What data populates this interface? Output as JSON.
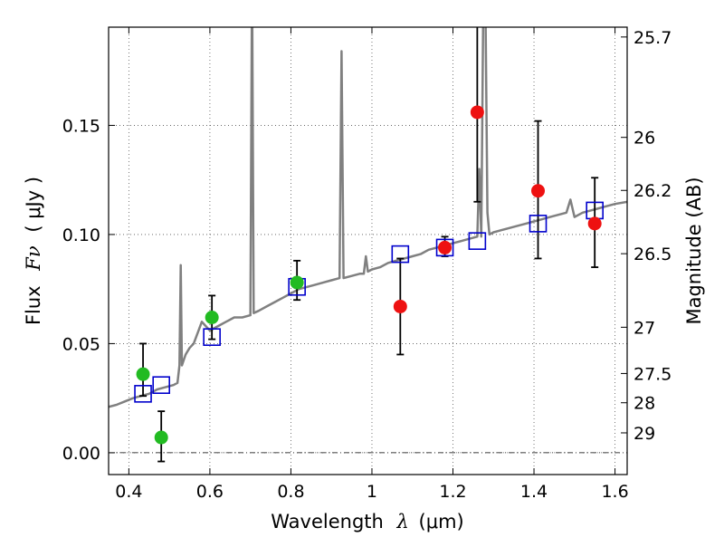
{
  "chart_data": {
    "type": "scatter",
    "xlabel_text": "Wavelength",
    "xlabel_symbol": "λ",
    "xlabel_unit": "(μm)",
    "ylabel_text": "Flux",
    "ylabel_symbol": "Fν",
    "ylabel_unit": "( μJy )",
    "y2label": "Magnitude (AB)",
    "xlim": [
      0.35,
      1.63
    ],
    "ylim": [
      -0.01,
      0.195
    ],
    "x_ticks": [
      0.4,
      0.6,
      0.8,
      1.0,
      1.2,
      1.4,
      1.6
    ],
    "x_tick_labels": [
      "0.4",
      "0.6",
      "0.8",
      "1",
      "1.2",
      "1.4",
      "1.6"
    ],
    "y_ticks": [
      0.0,
      0.05,
      0.1,
      0.15
    ],
    "y_tick_labels": [
      "0.00",
      "0.05",
      "0.10",
      "0.15"
    ],
    "magnitude_ticks": [
      {
        "label": "25.7",
        "flux": 0.1905
      },
      {
        "label": "26",
        "flux": 0.1445
      },
      {
        "label": "26.2",
        "flux": 0.1202
      },
      {
        "label": "26.5",
        "flux": 0.0912
      },
      {
        "label": "27",
        "flux": 0.0575
      },
      {
        "label": "27.5",
        "flux": 0.0363
      },
      {
        "label": "28",
        "flux": 0.0229
      },
      {
        "label": "29",
        "flux": 0.0091
      }
    ],
    "grid": true,
    "colors": {
      "spectrum": "#808080",
      "model_box": "#0000cc",
      "optical": "#22bb22",
      "nir": "#ee1111",
      "errorbar": "#000000",
      "grid": "#555555"
    },
    "series": [
      {
        "kind": "spectrum",
        "points": [
          [
            0.35,
            0.021
          ],
          [
            0.37,
            0.022
          ],
          [
            0.39,
            0.0235
          ],
          [
            0.41,
            0.025
          ],
          [
            0.43,
            0.026
          ],
          [
            0.45,
            0.027
          ],
          [
            0.47,
            0.029
          ],
          [
            0.49,
            0.03
          ],
          [
            0.51,
            0.031
          ],
          [
            0.52,
            0.032
          ],
          [
            0.525,
            0.04
          ],
          [
            0.528,
            0.086
          ],
          [
            0.531,
            0.04
          ],
          [
            0.54,
            0.045
          ],
          [
            0.55,
            0.048
          ],
          [
            0.56,
            0.05
          ],
          [
            0.57,
            0.055
          ],
          [
            0.58,
            0.06
          ],
          [
            0.59,
            0.058
          ],
          [
            0.6,
            0.056
          ],
          [
            0.62,
            0.058
          ],
          [
            0.64,
            0.06
          ],
          [
            0.66,
            0.062
          ],
          [
            0.68,
            0.062
          ],
          [
            0.7,
            0.063
          ],
          [
            0.704,
            0.22
          ],
          [
            0.708,
            0.064
          ],
          [
            0.72,
            0.065
          ],
          [
            0.74,
            0.067
          ],
          [
            0.76,
            0.069
          ],
          [
            0.78,
            0.071
          ],
          [
            0.8,
            0.073
          ],
          [
            0.82,
            0.075
          ],
          [
            0.84,
            0.076
          ],
          [
            0.86,
            0.077
          ],
          [
            0.88,
            0.078
          ],
          [
            0.9,
            0.079
          ],
          [
            0.92,
            0.08
          ],
          [
            0.925,
            0.184
          ],
          [
            0.93,
            0.08
          ],
          [
            0.95,
            0.081
          ],
          [
            0.97,
            0.082
          ],
          [
            0.98,
            0.082
          ],
          [
            0.985,
            0.09
          ],
          [
            0.99,
            0.083
          ],
          [
            1.0,
            0.084
          ],
          [
            1.02,
            0.085
          ],
          [
            1.04,
            0.087
          ],
          [
            1.06,
            0.088
          ],
          [
            1.08,
            0.089
          ],
          [
            1.1,
            0.09
          ],
          [
            1.12,
            0.091
          ],
          [
            1.14,
            0.093
          ],
          [
            1.16,
            0.094
          ],
          [
            1.18,
            0.095
          ],
          [
            1.2,
            0.096
          ],
          [
            1.22,
            0.097
          ],
          [
            1.24,
            0.098
          ],
          [
            1.26,
            0.099
          ],
          [
            1.265,
            0.13
          ],
          [
            1.27,
            0.099
          ],
          [
            1.275,
            0.21
          ],
          [
            1.28,
            0.21
          ],
          [
            1.285,
            0.11
          ],
          [
            1.29,
            0.1
          ],
          [
            1.3,
            0.101
          ],
          [
            1.32,
            0.102
          ],
          [
            1.34,
            0.103
          ],
          [
            1.36,
            0.104
          ],
          [
            1.38,
            0.105
          ],
          [
            1.4,
            0.106
          ],
          [
            1.42,
            0.107
          ],
          [
            1.44,
            0.108
          ],
          [
            1.46,
            0.109
          ],
          [
            1.48,
            0.11
          ],
          [
            1.49,
            0.116
          ],
          [
            1.5,
            0.108
          ],
          [
            1.52,
            0.11
          ],
          [
            1.54,
            0.111
          ],
          [
            1.56,
            0.112
          ],
          [
            1.58,
            0.113
          ],
          [
            1.6,
            0.114
          ],
          [
            1.63,
            0.115
          ]
        ]
      },
      {
        "kind": "model_boxes",
        "points": [
          [
            0.435,
            0.027
          ],
          [
            0.48,
            0.031
          ],
          [
            0.605,
            0.053
          ],
          [
            0.815,
            0.076
          ],
          [
            1.07,
            0.091
          ],
          [
            1.18,
            0.094
          ],
          [
            1.26,
            0.097
          ],
          [
            1.41,
            0.105
          ],
          [
            1.55,
            0.111
          ]
        ]
      },
      {
        "kind": "optical_measurements",
        "points": [
          {
            "x": 0.435,
            "y": 0.036,
            "err_low": 0.026,
            "err_high": 0.05
          },
          {
            "x": 0.48,
            "y": 0.007,
            "err_low": -0.004,
            "err_high": 0.019
          },
          {
            "x": 0.605,
            "y": 0.062,
            "err_low": 0.052,
            "err_high": 0.072
          },
          {
            "x": 0.815,
            "y": 0.078,
            "err_low": 0.07,
            "err_high": 0.088
          }
        ]
      },
      {
        "kind": "nir_measurements",
        "points": [
          {
            "x": 1.07,
            "y": 0.067,
            "err_low": 0.045,
            "err_high": 0.089
          },
          {
            "x": 1.18,
            "y": 0.094,
            "err_low": 0.09,
            "err_high": 0.099
          },
          {
            "x": 1.26,
            "y": 0.156,
            "err_low": 0.115,
            "err_high": 0.2
          },
          {
            "x": 1.41,
            "y": 0.12,
            "err_low": 0.089,
            "err_high": 0.152
          },
          {
            "x": 1.55,
            "y": 0.105,
            "err_low": 0.085,
            "err_high": 0.126
          }
        ]
      }
    ]
  }
}
